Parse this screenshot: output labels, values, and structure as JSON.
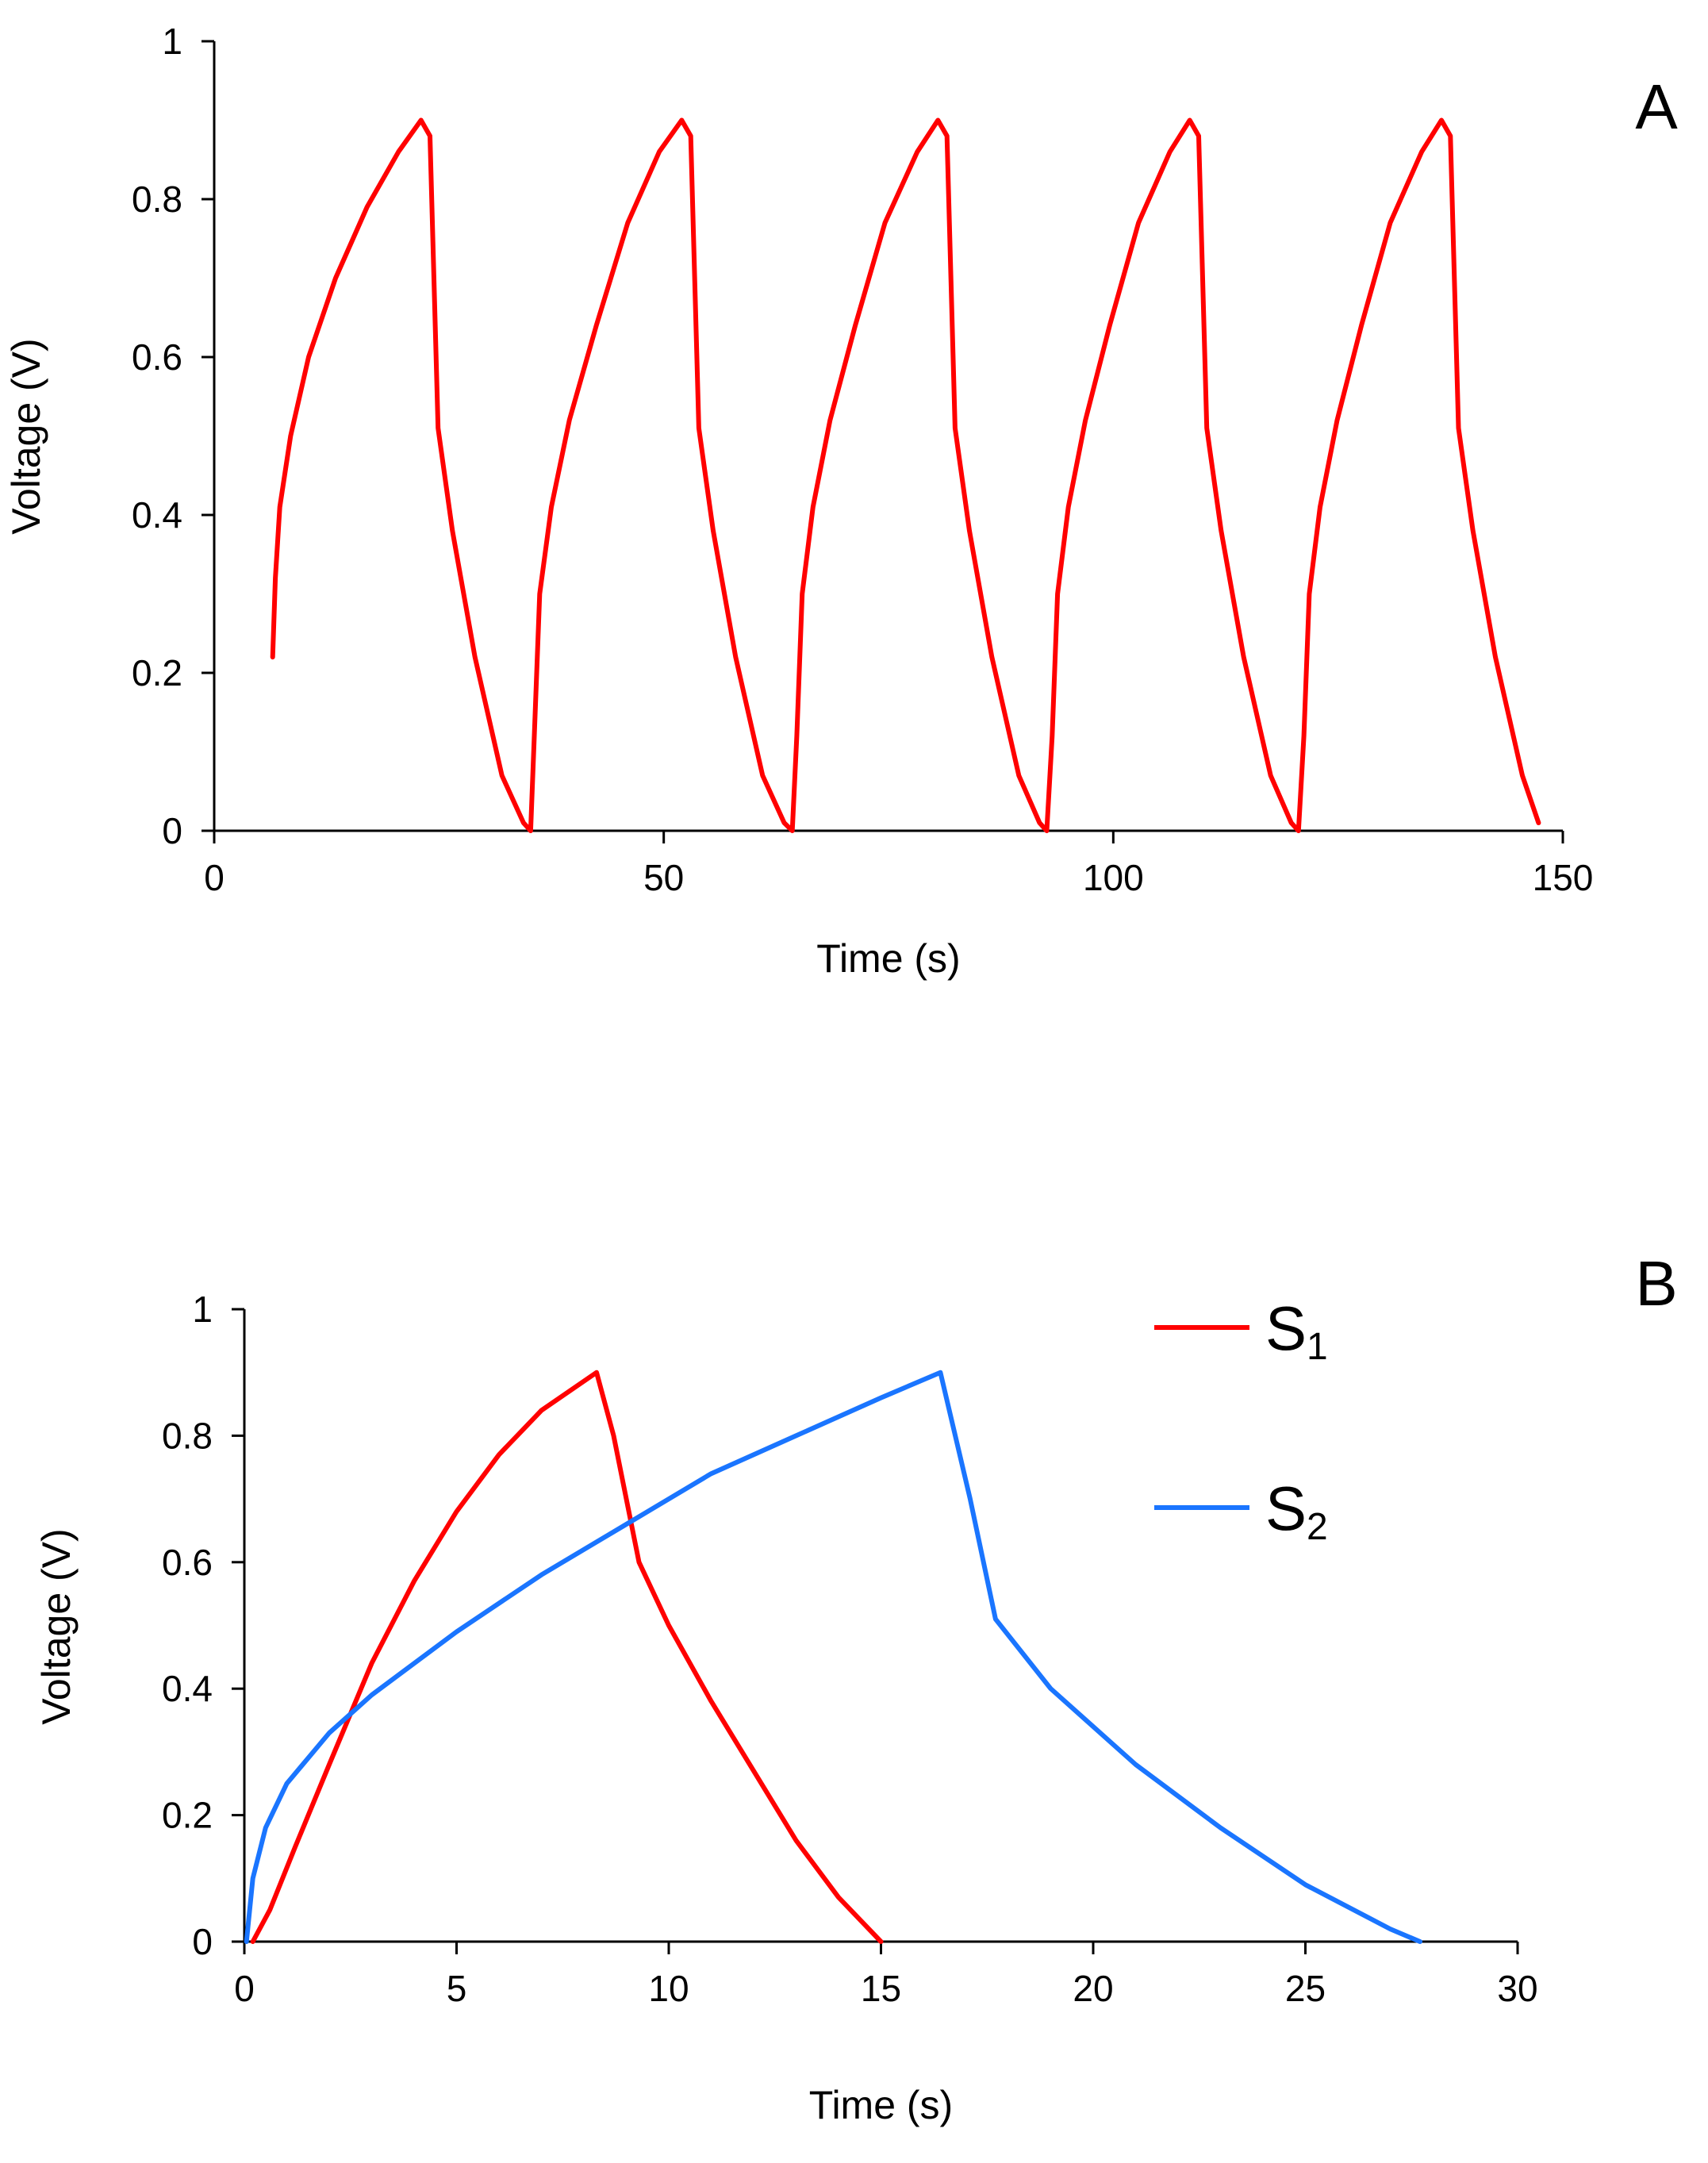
{
  "chart_data": [
    {
      "panel": "A",
      "type": "line",
      "title": "",
      "xlabel": "Time (s)",
      "ylabel": "Voltage (V)",
      "xlim": [
        0,
        150
      ],
      "ylim": [
        0,
        1
      ],
      "xticks": [
        "0",
        "50",
        "100",
        "150"
      ],
      "yticks": [
        "0",
        "0.2",
        "0.4",
        "0.6",
        "0.8",
        "1"
      ],
      "grid": false,
      "series": [
        {
          "name": "",
          "color": "#ff0000",
          "x": [
            6.5,
            6.8,
            7.3,
            8.5,
            10.5,
            13.5,
            17,
            20.5,
            23,
            24,
            24.9,
            26.5,
            29,
            32,
            34.4,
            35.2,
            35.6,
            36.2,
            37.5,
            39.5,
            42.5,
            46,
            49.5,
            52,
            53,
            53.9,
            55.5,
            58,
            61,
            63.4,
            64.3,
            64.8,
            65.4,
            66.6,
            68.5,
            71.3,
            74.6,
            78.2,
            80.5,
            81.5,
            82.4,
            84,
            86.5,
            89.5,
            91.8,
            92.6,
            93.2,
            93.8,
            95,
            96.9,
            99.6,
            102.8,
            106.3,
            108.5,
            109.5,
            110.4,
            112,
            114.5,
            117.5,
            119.8,
            120.6,
            121.2,
            121.8,
            123,
            124.9,
            127.6,
            130.8,
            134.3,
            136.5,
            137.5,
            138.4,
            140,
            142.5,
            145.5,
            147.3
          ],
          "y": [
            0.22,
            0.32,
            0.41,
            0.5,
            0.6,
            0.7,
            0.79,
            0.86,
            0.9,
            0.88,
            0.51,
            0.38,
            0.22,
            0.07,
            0.01,
            0,
            0.12,
            0.3,
            0.41,
            0.52,
            0.64,
            0.77,
            0.86,
            0.9,
            0.88,
            0.51,
            0.38,
            0.22,
            0.07,
            0.01,
            0,
            0.12,
            0.3,
            0.41,
            0.52,
            0.64,
            0.77,
            0.86,
            0.9,
            0.88,
            0.51,
            0.38,
            0.22,
            0.07,
            0.01,
            0,
            0.12,
            0.3,
            0.41,
            0.52,
            0.64,
            0.77,
            0.86,
            0.9,
            0.88,
            0.51,
            0.38,
            0.22,
            0.07,
            0.01,
            0,
            0.12,
            0.3,
            0.41,
            0.52,
            0.64,
            0.77,
            0.86,
            0.9,
            0.88,
            0.51,
            0.38,
            0.22,
            0.07,
            0.01
          ]
        }
      ]
    },
    {
      "panel": "B",
      "type": "line",
      "title": "",
      "xlabel": "Time (s)",
      "ylabel": "Voltage (V)",
      "xlim": [
        0,
        30
      ],
      "ylim": [
        0,
        1
      ],
      "xticks": [
        "0",
        "5",
        "10",
        "15",
        "20",
        "25",
        "30"
      ],
      "yticks": [
        "0",
        "0.2",
        "0.4",
        "0.6",
        "0.8",
        "1"
      ],
      "grid": false,
      "legend_position": "top-right",
      "series": [
        {
          "name": "S",
          "subscript": "1",
          "color": "#ff0000",
          "x": [
            0.2,
            0.6,
            1.2,
            2,
            3,
            4,
            5,
            6,
            7,
            8.3,
            8.7,
            9.3,
            10,
            11,
            12,
            13,
            14,
            15
          ],
          "y": [
            0,
            0.05,
            0.15,
            0.28,
            0.44,
            0.57,
            0.68,
            0.77,
            0.84,
            0.9,
            0.8,
            0.6,
            0.5,
            0.38,
            0.27,
            0.16,
            0.07,
            0
          ]
        },
        {
          "name": "S",
          "subscript": "2",
          "color": "#1a75ff",
          "x": [
            0.05,
            0.2,
            0.5,
            1,
            2,
            3,
            5,
            7,
            9,
            11,
            13,
            15,
            16.4,
            17.1,
            17.7,
            19,
            21,
            23,
            25,
            27,
            27.7
          ],
          "y": [
            0,
            0.1,
            0.18,
            0.25,
            0.33,
            0.39,
            0.49,
            0.58,
            0.66,
            0.74,
            0.8,
            0.86,
            0.9,
            0.7,
            0.51,
            0.4,
            0.28,
            0.18,
            0.09,
            0.02,
            0
          ]
        }
      ]
    }
  ],
  "panels": {
    "a_label": "A",
    "b_label": "B"
  }
}
